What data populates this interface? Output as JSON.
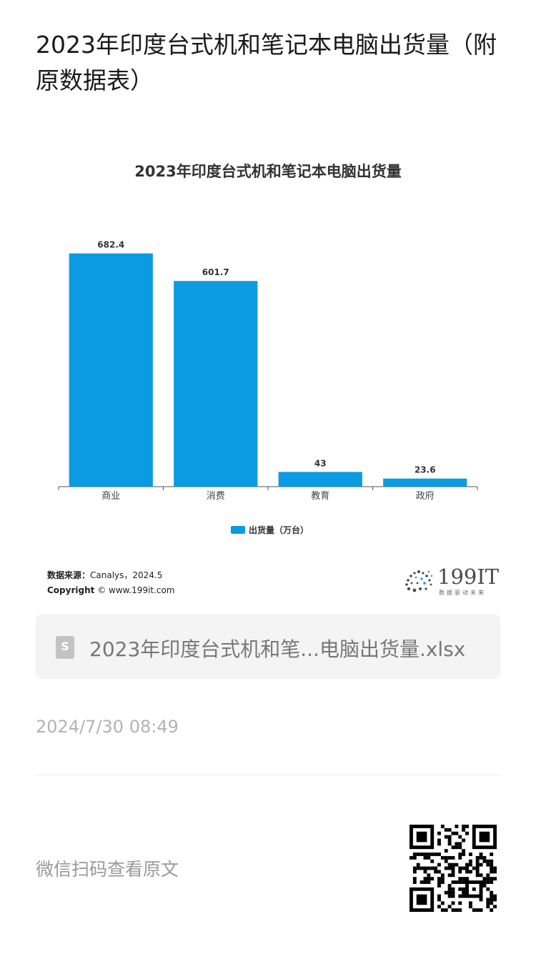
{
  "article": {
    "title": "2023年印度台式机和笔记本电脑出货量（附原数据表）"
  },
  "chart_data": {
    "type": "bar",
    "title": "2023年印度台式机和笔记本电脑出货量",
    "categories": [
      "商业",
      "消费",
      "教育",
      "政府"
    ],
    "series": [
      {
        "name": "出货量（万台）",
        "values": [
          682.4,
          601.7,
          43,
          23.6
        ],
        "color": "#0a9be3"
      }
    ],
    "value_labels": [
      "682.4",
      "601.7",
      "43",
      "23.6"
    ],
    "ylim": [
      0,
      700
    ],
    "grid": false,
    "legend_position": "bottom-center"
  },
  "source": {
    "label": "数据来源：",
    "value": "Canalys，2024.5",
    "copyright_label": "Copyright",
    "copyright_value": "© www.199it.com"
  },
  "logo": {
    "text": "199IT",
    "subtitle": "数据驱动未来"
  },
  "attachment": {
    "icon": "spreadsheet-icon",
    "icon_letter": "S",
    "filename": "2023年印度台式机和笔...电脑出货量.xlsx"
  },
  "timestamp": "2024/7/30 08:49",
  "footer": {
    "scan_text": "微信扫码查看原文",
    "qr_icon": "qr-code-icon"
  }
}
